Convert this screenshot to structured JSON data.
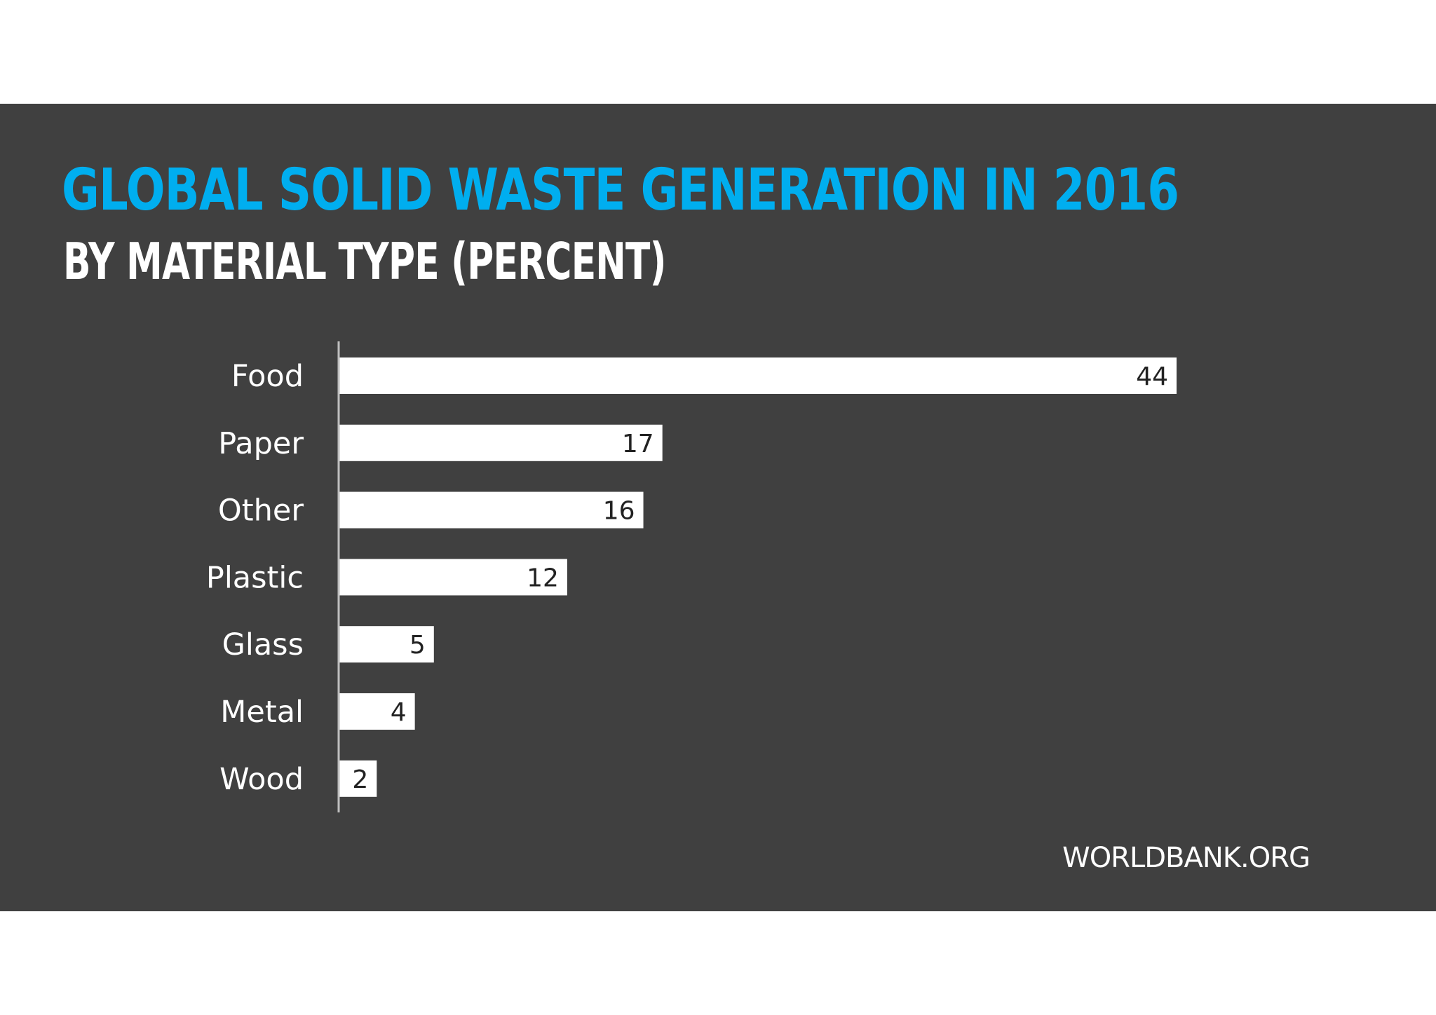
{
  "colors": {
    "panel": "#404040",
    "title": "#00aeef",
    "subtitle": "#ffffff",
    "bar": "#ffffff",
    "bar_label": "#222222",
    "category_label": "#ffffff",
    "axis": "#bfbfbf",
    "source": "#ffffff"
  },
  "source": "WORLDBANK.ORG",
  "chart_data": {
    "type": "bar",
    "orientation": "horizontal",
    "title": "GLOBAL SOLID WASTE GENERATION IN 2016",
    "subtitle": "BY MATERIAL TYPE (PERCENT)",
    "categories": [
      "Food",
      "Paper",
      "Other",
      "Plastic",
      "Glass",
      "Metal",
      "Wood"
    ],
    "values": [
      44,
      17,
      16,
      12,
      5,
      4,
      2
    ],
    "value_labels": [
      "44",
      "17",
      "16",
      "12",
      "5",
      "4",
      "2"
    ],
    "xlim": [
      0,
      44
    ],
    "grid": false,
    "legend": "none",
    "data_labels": "inside-end"
  }
}
